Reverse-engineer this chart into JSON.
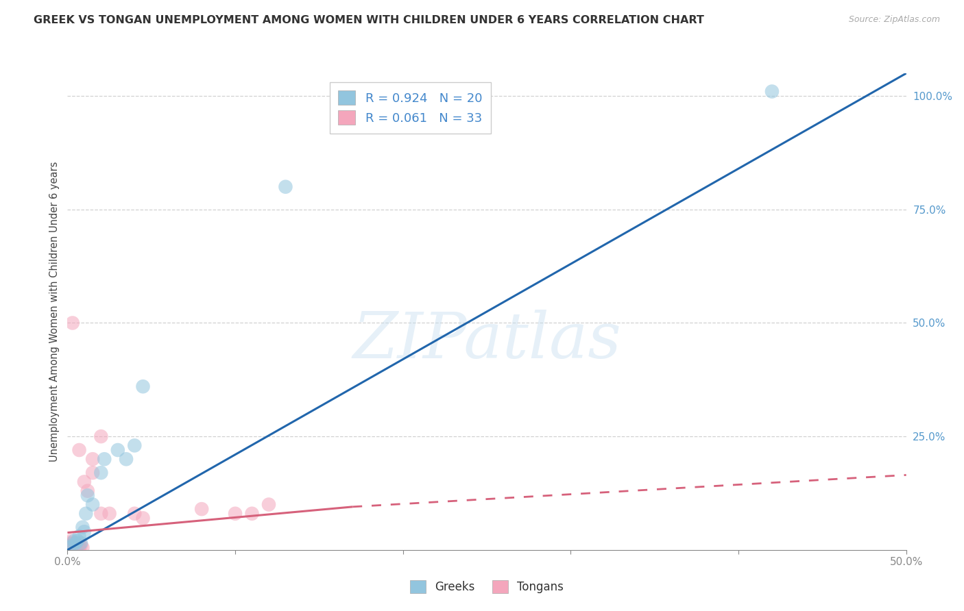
{
  "title": "GREEK VS TONGAN UNEMPLOYMENT AMONG WOMEN WITH CHILDREN UNDER 6 YEARS CORRELATION CHART",
  "source": "Source: ZipAtlas.com",
  "ylabel": "Unemployment Among Women with Children Under 6 years",
  "xlim": [
    0.0,
    0.5
  ],
  "ylim": [
    0.0,
    1.05
  ],
  "xticks": [
    0.0,
    0.1,
    0.2,
    0.3,
    0.4,
    0.5
  ],
  "xtick_labels": [
    "0.0%",
    "",
    "",
    "",
    "",
    "50.0%"
  ],
  "yticks": [
    0.0,
    0.25,
    0.5,
    0.75,
    1.0
  ],
  "ytick_labels": [
    "",
    "25.0%",
    "50.0%",
    "75.0%",
    "100.0%"
  ],
  "greek_color": "#92c5de",
  "tongan_color": "#f4a6bc",
  "greek_line_color": "#2166ac",
  "tongan_line_color": "#d6617b",
  "greek_R": 0.924,
  "greek_N": 20,
  "tongan_R": 0.061,
  "tongan_N": 33,
  "watermark": "ZIPatlas",
  "greek_points": [
    [
      0.001,
      0.005
    ],
    [
      0.003,
      0.01
    ],
    [
      0.004,
      0.02
    ],
    [
      0.005,
      0.015
    ],
    [
      0.006,
      0.02
    ],
    [
      0.007,
      0.03
    ],
    [
      0.008,
      0.015
    ],
    [
      0.009,
      0.05
    ],
    [
      0.01,
      0.04
    ],
    [
      0.011,
      0.08
    ],
    [
      0.012,
      0.12
    ],
    [
      0.015,
      0.1
    ],
    [
      0.02,
      0.17
    ],
    [
      0.022,
      0.2
    ],
    [
      0.03,
      0.22
    ],
    [
      0.035,
      0.2
    ],
    [
      0.04,
      0.23
    ],
    [
      0.045,
      0.36
    ],
    [
      0.13,
      0.8
    ],
    [
      0.42,
      1.01
    ]
  ],
  "tongan_points": [
    [
      0.001,
      0.005
    ],
    [
      0.001,
      0.01
    ],
    [
      0.001,
      0.015
    ],
    [
      0.002,
      0.005
    ],
    [
      0.002,
      0.01
    ],
    [
      0.002,
      0.02
    ],
    [
      0.003,
      0.005
    ],
    [
      0.003,
      0.01
    ],
    [
      0.003,
      0.015
    ],
    [
      0.004,
      0.008
    ],
    [
      0.004,
      0.015
    ],
    [
      0.005,
      0.005
    ],
    [
      0.005,
      0.015
    ],
    [
      0.006,
      0.01
    ],
    [
      0.007,
      0.005
    ],
    [
      0.007,
      0.01
    ],
    [
      0.008,
      0.01
    ],
    [
      0.009,
      0.005
    ],
    [
      0.01,
      0.15
    ],
    [
      0.012,
      0.13
    ],
    [
      0.015,
      0.17
    ],
    [
      0.015,
      0.2
    ],
    [
      0.02,
      0.08
    ],
    [
      0.025,
      0.08
    ],
    [
      0.04,
      0.08
    ],
    [
      0.045,
      0.07
    ],
    [
      0.08,
      0.09
    ],
    [
      0.1,
      0.08
    ],
    [
      0.11,
      0.08
    ],
    [
      0.12,
      0.1
    ],
    [
      0.003,
      0.5
    ],
    [
      0.02,
      0.25
    ],
    [
      0.007,
      0.22
    ]
  ],
  "tongan_line_x": [
    0.0,
    0.17,
    0.5
  ],
  "tongan_line_y": [
    0.038,
    0.095,
    0.165
  ],
  "greek_line_x": [
    0.0,
    0.5
  ],
  "greek_line_y": [
    0.0,
    1.05
  ],
  "background_color": "#ffffff",
  "grid_color": "#cccccc",
  "tick_color": "#5599cc",
  "label_color": "#444444"
}
